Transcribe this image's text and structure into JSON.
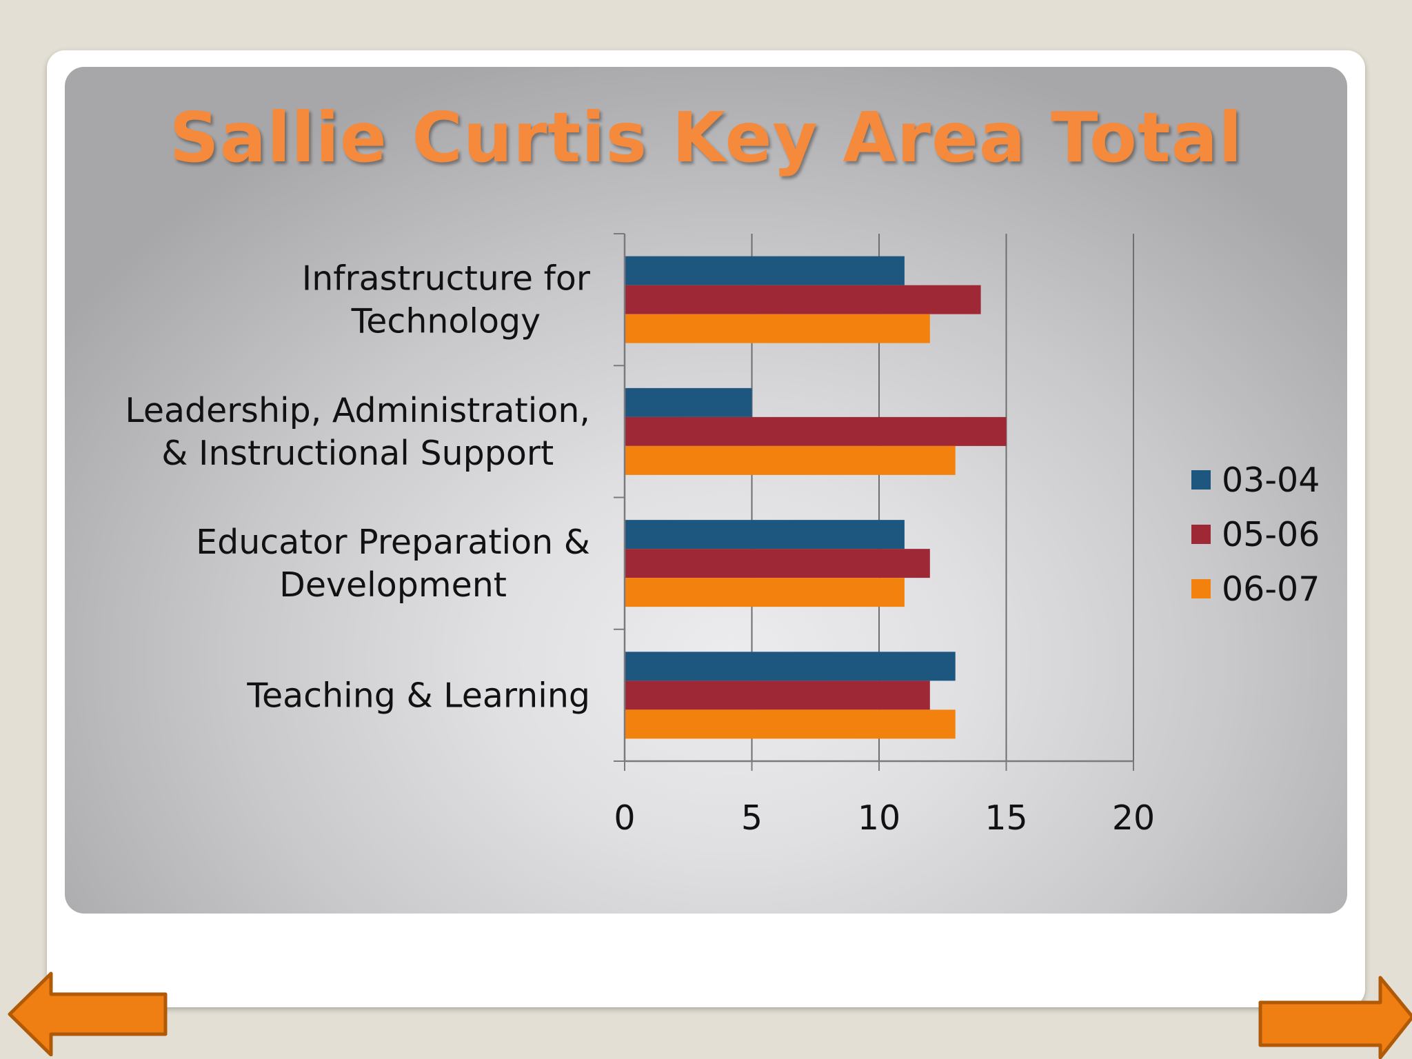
{
  "slide": {
    "title": "Sallie Curtis Key Area Total"
  },
  "navigation": {
    "back_icon": "left-arrow-icon",
    "forward_icon": "right-arrow-icon"
  },
  "colors": {
    "title": "#f58a3c",
    "series_03_04": "#1d5780",
    "series_05_06": "#9e2836",
    "series_06_07": "#f2820d",
    "nav_arrow": "#ef7f12"
  },
  "chart_data": {
    "type": "bar",
    "orientation": "horizontal",
    "title": "Sallie Curtis Key Area Total",
    "categories": [
      [
        "Infrastructure for",
        "Technology"
      ],
      [
        "Leadership, Administration,",
        "& Instructional Support"
      ],
      [
        "Educator Preparation &",
        "Development"
      ],
      [
        "Teaching & Learning"
      ]
    ],
    "series": [
      {
        "name": "03-04",
        "color": "#1d5780",
        "values": [
          11,
          5,
          11,
          13
        ]
      },
      {
        "name": "05-06",
        "color": "#9e2836",
        "values": [
          14,
          15,
          12,
          12
        ]
      },
      {
        "name": "06-07",
        "color": "#f2820d",
        "values": [
          12,
          13,
          11,
          13
        ]
      }
    ],
    "xlim": [
      0,
      20
    ],
    "xticks": [
      "0",
      "5",
      "10",
      "15",
      "20"
    ],
    "xlabel": "",
    "ylabel": "",
    "grid": "vertical",
    "legend": "right"
  }
}
